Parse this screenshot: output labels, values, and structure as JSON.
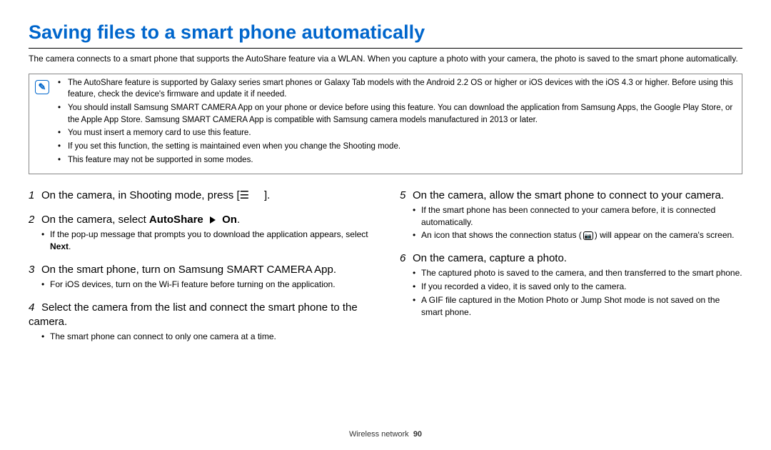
{
  "title": "Saving files to a smart phone automatically",
  "intro": "The camera connects to a smart phone that supports the AutoShare feature via a WLAN. When you capture a photo with your camera, the photo is saved to the smart phone automatically.",
  "note_icon_glyph": "✎",
  "notes": [
    "The AutoShare feature is supported by Galaxy series smart phones or Galaxy Tab models with the Android 2.2 OS or higher or iOS devices with the iOS 4.3 or higher. Before using this feature, check the device's firmware and update it if needed.",
    "You should install Samsung SMART CAMERA App on your phone or device before using this feature. You can download the application from Samsung Apps, the Google Play Store, or the Apple App Store. Samsung SMART CAMERA App is compatible with Samsung camera models manufactured in 2013 or later.",
    "You must insert a memory card to use this feature.",
    "If you set this function, the setting is maintained even when you change the Shooting mode.",
    "This feature may not be supported in some modes."
  ],
  "left_steps": [
    {
      "num": "1",
      "text_pre": "On the camera, in Shooting mode, press [",
      "text_post": "].",
      "symbol": "☰",
      "subs": []
    },
    {
      "num": "2",
      "text_pre": "On the camera, select ",
      "bold1": "AutoShare",
      "mid": "",
      "bold2": "On",
      "text_post": ".",
      "subs": [
        "If the pop-up message that prompts you to download the application appears, select Next."
      ]
    },
    {
      "num": "3",
      "text_pre": "On the smart phone, turn on Samsung SMART CAMERA App.",
      "subs": [
        "For iOS devices, turn on the Wi-Fi feature before turning on the application."
      ]
    },
    {
      "num": "4",
      "text_pre": "Select the camera from the list and connect the smart phone to the camera.",
      "subs": [
        "The smart phone can connect to only one camera at a time."
      ]
    }
  ],
  "right_steps": [
    {
      "num": "5",
      "text_pre": "On the camera, allow the smart phone to connect to your camera.",
      "subs": [
        "If the smart phone has been connected to your camera before, it is connected automatically.",
        "An icon that shows the connection status (__ICON__) will appear on the camera's screen."
      ]
    },
    {
      "num": "6",
      "text_pre": "On the camera, capture a photo.",
      "subs": [
        "The captured photo is saved to the camera, and then transferred to the smart phone.",
        "If you recorded a video, it is saved only to the camera.",
        "A GIF file captured in the Motion Photo or Jump Shot mode is not saved on the smart phone."
      ]
    }
  ],
  "footer_label": "Wireless network",
  "page_number": "90",
  "colors": {
    "title": "#0066cc",
    "text": "#000000",
    "note_border": "#888888",
    "background": "#ffffff"
  }
}
